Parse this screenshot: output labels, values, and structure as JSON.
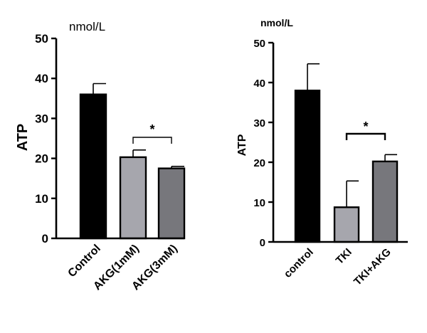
{
  "chart_data": [
    {
      "type": "bar",
      "unit_label": "nmol/L",
      "ylabel": "ATP",
      "ylim": [
        0,
        50
      ],
      "yticks": [
        "0",
        "10",
        "20",
        "30",
        "40",
        "50"
      ],
      "categories": [
        "Control",
        "AKG(1mM)",
        "AKG(3mM)"
      ],
      "values": [
        36,
        20.3,
        17.5
      ],
      "errors": [
        2.7,
        1.8,
        0.5
      ],
      "bar_colors": [
        "#000000",
        "#a6a6ad",
        "#77777c"
      ],
      "significance": [
        {
          "between": [
            "AKG(1mM)",
            "AKG(3mM)"
          ],
          "label": "*"
        }
      ]
    },
    {
      "type": "bar",
      "unit_label": "nmol/L",
      "ylabel": "ATP",
      "ylim": [
        0,
        50
      ],
      "yticks": [
        "0",
        "10",
        "20",
        "30",
        "40",
        "50"
      ],
      "categories": [
        "control",
        "TKI",
        "TKI+AKG"
      ],
      "values": [
        38,
        8.7,
        20.2
      ],
      "errors": [
        6.7,
        6.6,
        1.7
      ],
      "bar_colors": [
        "#000000",
        "#a6a6ad",
        "#77777c"
      ],
      "significance": [
        {
          "between": [
            "TKI",
            "TKI+AKG"
          ],
          "label": "*"
        }
      ]
    }
  ]
}
